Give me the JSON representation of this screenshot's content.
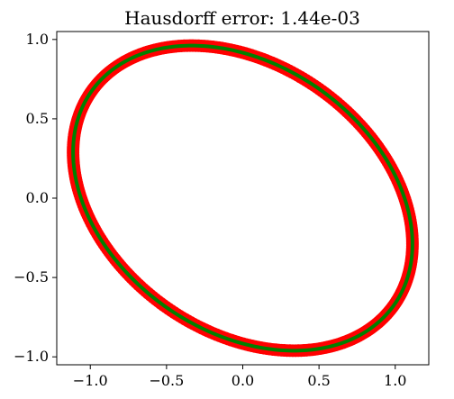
{
  "chart_data": {
    "type": "scatter",
    "title": "Hausdorff error: 1.44e-03",
    "xlabel": "",
    "ylabel": "",
    "xlim": [
      -1.22,
      1.22
    ],
    "ylim": [
      -1.05,
      1.05
    ],
    "xticks": [
      -1.0,
      -0.5,
      0.0,
      0.5,
      1.0
    ],
    "xtick_labels": [
      "−1.0",
      "−0.5",
      "0.0",
      "0.5",
      "1.0"
    ],
    "yticks": [
      -1.0,
      -0.5,
      0.0,
      0.5,
      1.0
    ],
    "ytick_labels": [
      "−1.0",
      "−0.5",
      "0.0",
      "0.5",
      "1.0"
    ],
    "grid": false,
    "series": [
      {
        "kind": "ellipse-points",
        "color": "#ff0000",
        "center": [
          0.0,
          0.0
        ],
        "semi_axes": [
          1.2,
          0.85
        ],
        "rotation_deg": -32,
        "marker": "thick-ring"
      },
      {
        "kind": "ellipse-curve",
        "color": "#008000",
        "center": [
          0.0,
          0.0
        ],
        "semi_axes": [
          1.2,
          0.85
        ],
        "rotation_deg": -32
      }
    ]
  }
}
